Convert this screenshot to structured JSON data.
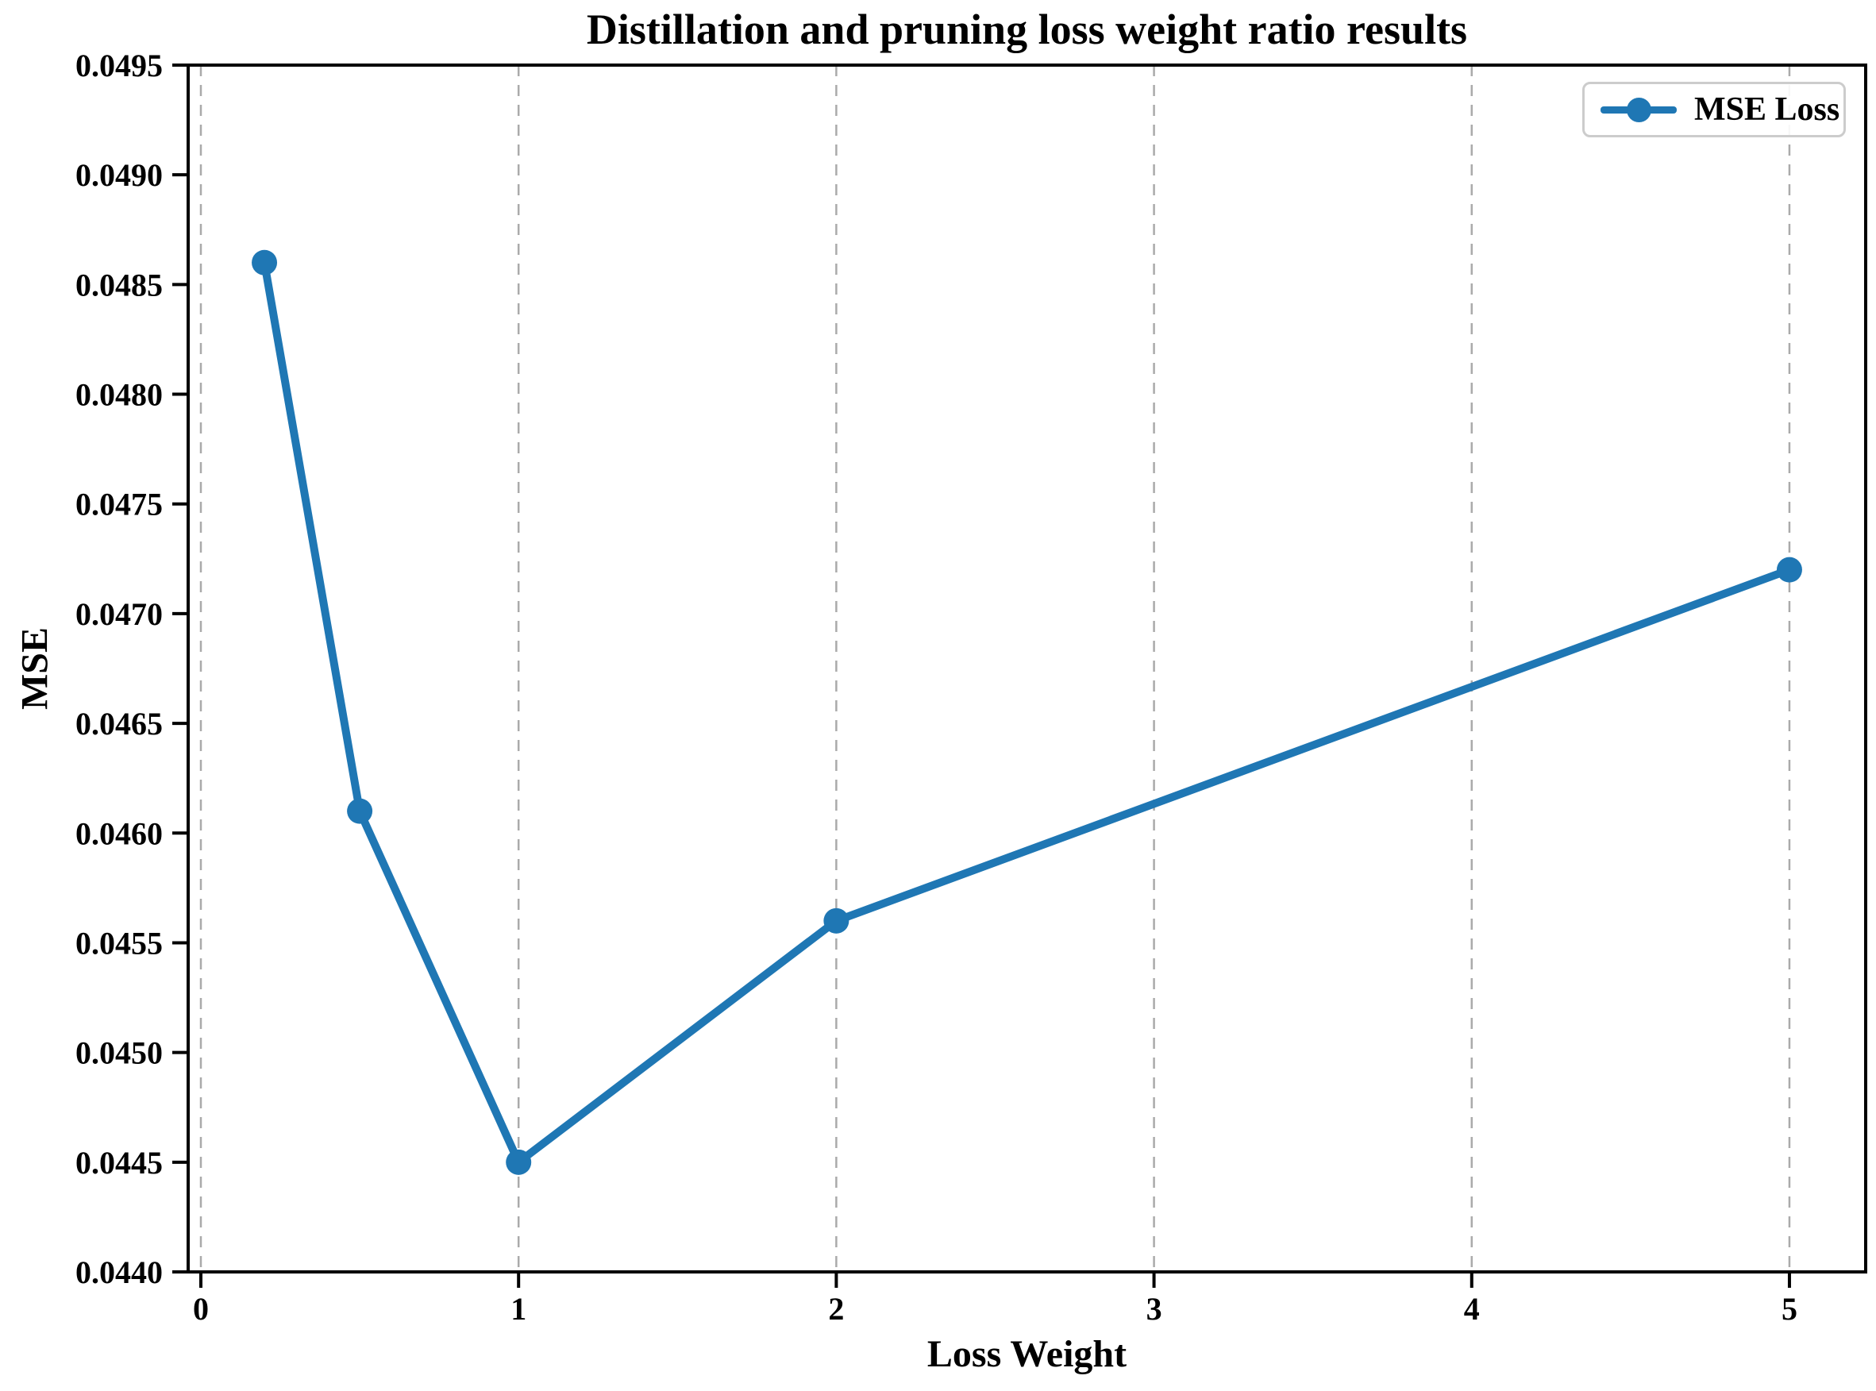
{
  "chart_data": {
    "type": "line",
    "title": "Distillation and pruning loss weight ratio results",
    "xlabel": "Loss Weight",
    "ylabel": "MSE",
    "series": [
      {
        "name": "MSE Loss",
        "color": "#1f77b4",
        "marker": "circle",
        "x": [
          0.2,
          0.5,
          1,
          2,
          5
        ],
        "y": [
          0.0486,
          0.0461,
          0.0445,
          0.0456,
          0.0472
        ]
      }
    ],
    "xlim": [
      -0.04,
      5.24
    ],
    "ylim": [
      0.044,
      0.0495
    ],
    "xticks": {
      "values": [
        0,
        1,
        2,
        3,
        4,
        5
      ],
      "labels": [
        "0",
        "1",
        "2",
        "3",
        "4",
        "5"
      ]
    },
    "yticks": {
      "values": [
        0.044,
        0.0445,
        0.045,
        0.0455,
        0.046,
        0.0465,
        0.047,
        0.0475,
        0.048,
        0.0485,
        0.049,
        0.0495
      ],
      "labels": [
        "0.0440",
        "0.0445",
        "0.0450",
        "0.0455",
        "0.0460",
        "0.0465",
        "0.0470",
        "0.0475",
        "0.0480",
        "0.0485",
        "0.0490",
        "0.0495"
      ]
    },
    "grid": "vertical-dashed-on-xticks",
    "legend_position": "upper right",
    "colors": {
      "line": "#1f77b4",
      "grid": "#aaaaaa",
      "spine": "#000000",
      "legend_border": "#cccccc",
      "background": "#ffffff"
    }
  }
}
